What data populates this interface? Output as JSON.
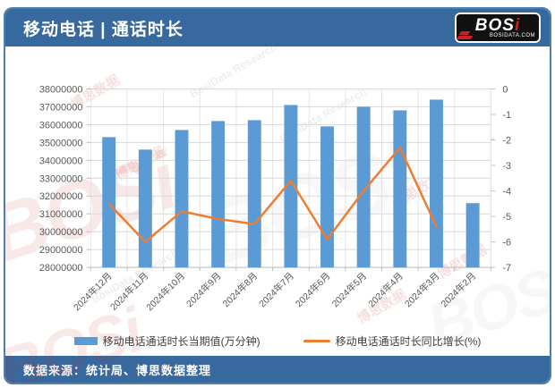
{
  "header": {
    "title": "移动电话 | 通话时长",
    "logo": {
      "text_main": "BOS",
      "text_i": "i",
      "sub": "BOSIDATA.COM"
    }
  },
  "footer": {
    "source": "数据来源：统计局、博思数据整理"
  },
  "watermark": {
    "cn": "博思数据",
    "en": "BosiData Research",
    "logo": "BOSi"
  },
  "colors": {
    "header_bg": "#38699E",
    "bar": "#5B9BD5",
    "line": "#ED7D31",
    "grid": "#D9D9D9",
    "grid_vertical": "#E4E4E4",
    "tick": "#BFBFBF",
    "axis_text": "#595959",
    "card_border": "#4d80ab"
  },
  "chart_data": {
    "type": "bar",
    "title": "移动电话 | 通话时长",
    "categories": [
      "2024年12月",
      "2024年11月",
      "2024年10月",
      "2024年9月",
      "2024年8月",
      "2024年7月",
      "2024年6月",
      "2024年5月",
      "2024年4月",
      "2024年3月",
      "2024年2月"
    ],
    "series": [
      {
        "name": "移动电话通话时长当期值(万分钟)",
        "type": "bar",
        "axis": "left",
        "values": [
          35300000,
          34600000,
          35700000,
          36200000,
          36250000,
          37100000,
          35900000,
          37000000,
          36800000,
          37400000,
          31600000
        ]
      },
      {
        "name": "移动电话通话时长同比增长(%)",
        "type": "line",
        "axis": "right",
        "values": [
          -4.5,
          -6.0,
          -4.8,
          -5.1,
          -5.3,
          -3.6,
          -5.9,
          -4.0,
          -2.3,
          -5.4,
          null
        ]
      }
    ],
    "left_axis": {
      "min": 28000000,
      "max": 38000000,
      "ticks": [
        38000000,
        37000000,
        36000000,
        35000000,
        34000000,
        33000000,
        32000000,
        31000000,
        30000000,
        29000000,
        28000000
      ]
    },
    "right_axis": {
      "min": -7,
      "max": 0,
      "ticks": [
        0,
        -1,
        -2,
        -3,
        -4,
        -5,
        -6,
        -7
      ]
    },
    "grid": true,
    "legend_position": "bottom"
  }
}
